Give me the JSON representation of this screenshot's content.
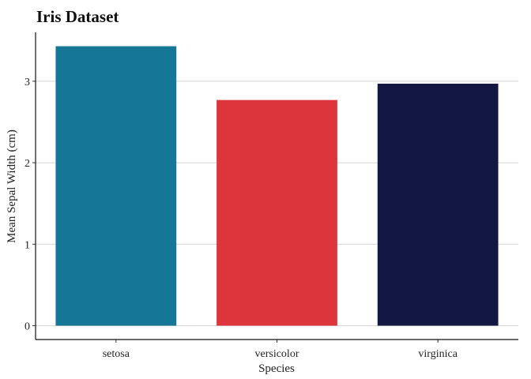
{
  "chart_data": {
    "type": "bar",
    "title": "Iris Dataset",
    "xlabel": "Species",
    "ylabel": "Mean Sepal Width (cm)",
    "categories": [
      "setosa",
      "versicolor",
      "virginica"
    ],
    "values": [
      3.43,
      2.77,
      2.97
    ],
    "colors": [
      "#167696",
      "#dc363c",
      "#131842"
    ],
    "ylim": [
      -0.17,
      3.6
    ],
    "yticks": [
      "0",
      "1",
      "2",
      "3"
    ],
    "grid": "horizontal",
    "legend": "none"
  }
}
